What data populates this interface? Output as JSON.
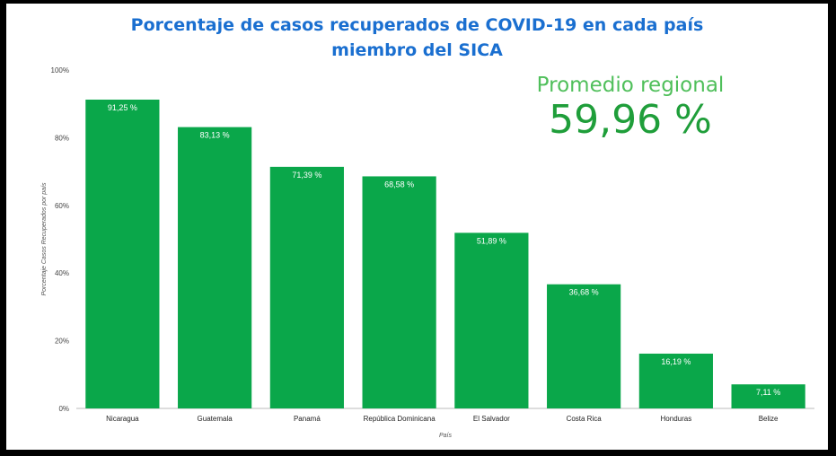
{
  "title_line1": "Porcentaje de casos recuperados de COVID-19 en cada país",
  "title_line2": "miembro del SICA",
  "promedio": {
    "label": "Promedio regional",
    "value": "59,96 %"
  },
  "colors": {
    "bar": "#0aa74a",
    "title": "#1a6fd0",
    "promedio_label": "#4fbf5a",
    "promedio_value": "#1f9e3a"
  },
  "chart_data": {
    "type": "bar",
    "title": "Porcentaje de casos recuperados de COVID-19 en cada país miembro del SICA",
    "xlabel": "País",
    "ylabel": "Porcentaje Casos Recuperados por país",
    "categories": [
      "Nicaragua",
      "Guatemala",
      "Panamá",
      "República Dominicana",
      "El Salvador",
      "Costa Rica",
      "Honduras",
      "Belize"
    ],
    "values": [
      91.25,
      83.13,
      71.39,
      68.58,
      51.89,
      36.68,
      16.19,
      7.11
    ],
    "data_labels": [
      "91,25 %",
      "83,13 %",
      "71,39 %",
      "68,58 %",
      "51,89 %",
      "36,68 %",
      "16,19 %",
      "7,11 %"
    ],
    "ylim": [
      0,
      100
    ],
    "yticks": [
      0,
      20,
      40,
      60,
      80,
      100
    ],
    "ytick_labels": [
      "0%",
      "20%",
      "40%",
      "60%",
      "80%",
      "100%"
    ],
    "grid": false,
    "legend": "none"
  }
}
